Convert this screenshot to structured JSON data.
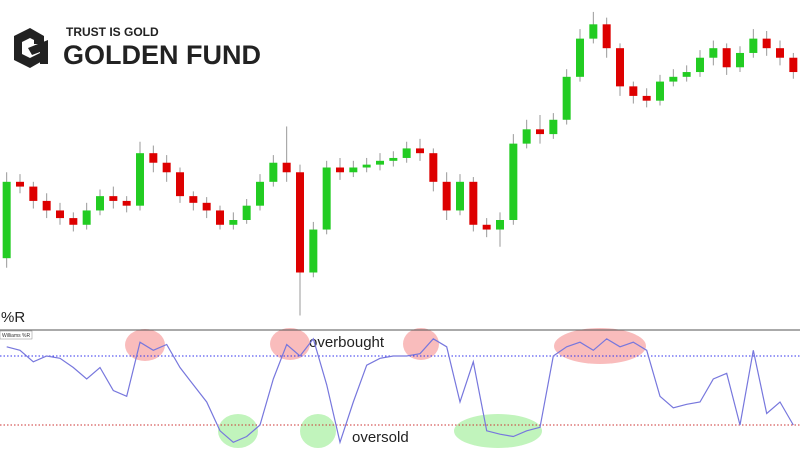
{
  "header": {
    "tagline": "TRUST IS GOLD",
    "brand": "GOLDEN FUND"
  },
  "chart_data": [
    {
      "type": "candlestick",
      "up_color": "#22cc22",
      "down_color": "#dd0000",
      "wick_color": "#999999",
      "ylim": [
        0,
        330
      ],
      "open": [
        70,
        150,
        145,
        130,
        120,
        112,
        105,
        120,
        135,
        130,
        125,
        180,
        170,
        160,
        135,
        128,
        120,
        105,
        110,
        125,
        150,
        170,
        160,
        55,
        100,
        165,
        160,
        165,
        168,
        172,
        175,
        185,
        180,
        150,
        120,
        150,
        105,
        100,
        110,
        190,
        205,
        200,
        215,
        260,
        300,
        315,
        290,
        250,
        240,
        235,
        255,
        260,
        265,
        280,
        290,
        270,
        285,
        300,
        290,
        280
      ],
      "high": [
        160,
        158,
        150,
        138,
        128,
        118,
        128,
        142,
        145,
        135,
        192,
        188,
        178,
        165,
        140,
        134,
        125,
        118,
        132,
        158,
        178,
        208,
        168,
        108,
        172,
        175,
        172,
        175,
        180,
        182,
        192,
        195,
        185,
        160,
        158,
        155,
        112,
        118,
        200,
        215,
        220,
        222,
        268,
        310,
        328,
        322,
        295,
        255,
        248,
        262,
        268,
        272,
        288,
        298,
        295,
        292,
        310,
        308,
        298,
        285
      ],
      "low": [
        60,
        138,
        122,
        112,
        105,
        98,
        100,
        115,
        122,
        118,
        120,
        160,
        150,
        128,
        120,
        112,
        100,
        100,
        106,
        120,
        145,
        150,
        10,
        50,
        95,
        152,
        155,
        160,
        162,
        166,
        170,
        172,
        140,
        110,
        115,
        98,
        92,
        82,
        105,
        185,
        190,
        195,
        210,
        255,
        295,
        280,
        240,
        232,
        228,
        230,
        250,
        255,
        260,
        272,
        262,
        265,
        280,
        282,
        272,
        258
      ],
      "close": [
        150,
        145,
        130,
        120,
        112,
        105,
        120,
        135,
        130,
        125,
        180,
        170,
        160,
        135,
        128,
        120,
        105,
        110,
        125,
        150,
        170,
        160,
        55,
        100,
        165,
        160,
        165,
        168,
        172,
        175,
        185,
        180,
        150,
        120,
        150,
        105,
        100,
        110,
        190,
        205,
        200,
        215,
        260,
        300,
        315,
        290,
        250,
        240,
        235,
        255,
        260,
        265,
        280,
        290,
        270,
        285,
        300,
        290,
        280,
        265
      ]
    },
    {
      "type": "line",
      "title": "%R",
      "label": "Williams %R",
      "color": "#7777dd",
      "ylim": [
        -100,
        0
      ],
      "hlines": [
        {
          "value": -20,
          "color": "#3333ee"
        },
        {
          "value": -80,
          "color": "#cc3333"
        }
      ],
      "annotations": [
        "overbought",
        "oversold"
      ],
      "values": [
        -12,
        -15,
        -25,
        -20,
        -22,
        -30,
        -40,
        -30,
        -50,
        -55,
        -8,
        -15,
        -10,
        -30,
        -45,
        -60,
        -85,
        -95,
        -90,
        -80,
        -40,
        -10,
        -20,
        -5,
        -45,
        -95,
        -60,
        -28,
        -22,
        -20,
        -20,
        -18,
        -5,
        -12,
        -60,
        -25,
        -85,
        -88,
        -90,
        -85,
        -82,
        -20,
        -12,
        -8,
        -15,
        -5,
        -12,
        -8,
        -15,
        -55,
        -65,
        -62,
        -60,
        -40,
        -35,
        -80,
        -15,
        -70,
        -60,
        -80
      ]
    }
  ]
}
